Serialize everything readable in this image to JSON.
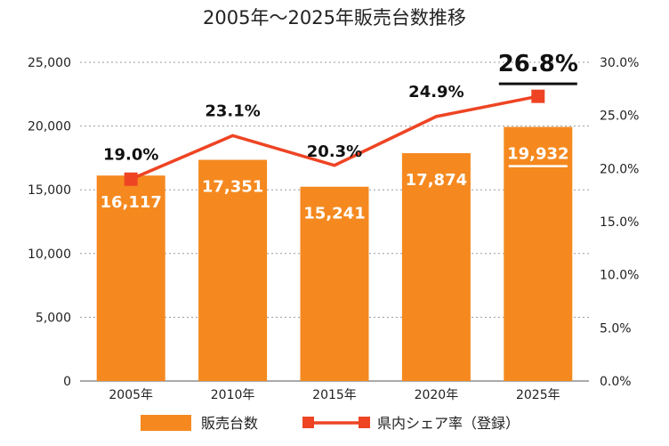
{
  "chart_data": {
    "type": "bar+line",
    "title": "2005年〜2025年販売台数推移",
    "categories": [
      "2005年",
      "2010年",
      "2015年",
      "2020年",
      "2025年"
    ],
    "series": [
      {
        "name": "販売台数",
        "type": "bar",
        "axis": "left",
        "values": [
          16117,
          17351,
          15241,
          17874,
          19932
        ],
        "labels": [
          "16,117",
          "17,351",
          "15,241",
          "17,874",
          "19,932"
        ],
        "color": "#F5891F"
      },
      {
        "name": "県内シェア率（登録）",
        "type": "line",
        "axis": "right",
        "values": [
          19.0,
          23.1,
          20.3,
          24.9,
          26.8
        ],
        "labels": [
          "19.0%",
          "23.1%",
          "20.3%",
          "24.9%",
          "26.8%"
        ],
        "color": "#EE4423"
      }
    ],
    "y_left": {
      "min": 0,
      "max": 25000,
      "ticks": [
        "0",
        "5,000",
        "10,000",
        "15,000",
        "20,000",
        "25,000"
      ]
    },
    "y_right": {
      "min": 0,
      "max": 30,
      "ticks": [
        "0.0%",
        "5.0%",
        "10.0%",
        "15.0%",
        "20.0%",
        "25.0%",
        "30.0%"
      ]
    },
    "legend": [
      {
        "label": "販売台数",
        "kind": "bar"
      },
      {
        "label": "県内シェア率（登録）",
        "kind": "line"
      }
    ],
    "legend_position": "bottom",
    "grid": true
  }
}
